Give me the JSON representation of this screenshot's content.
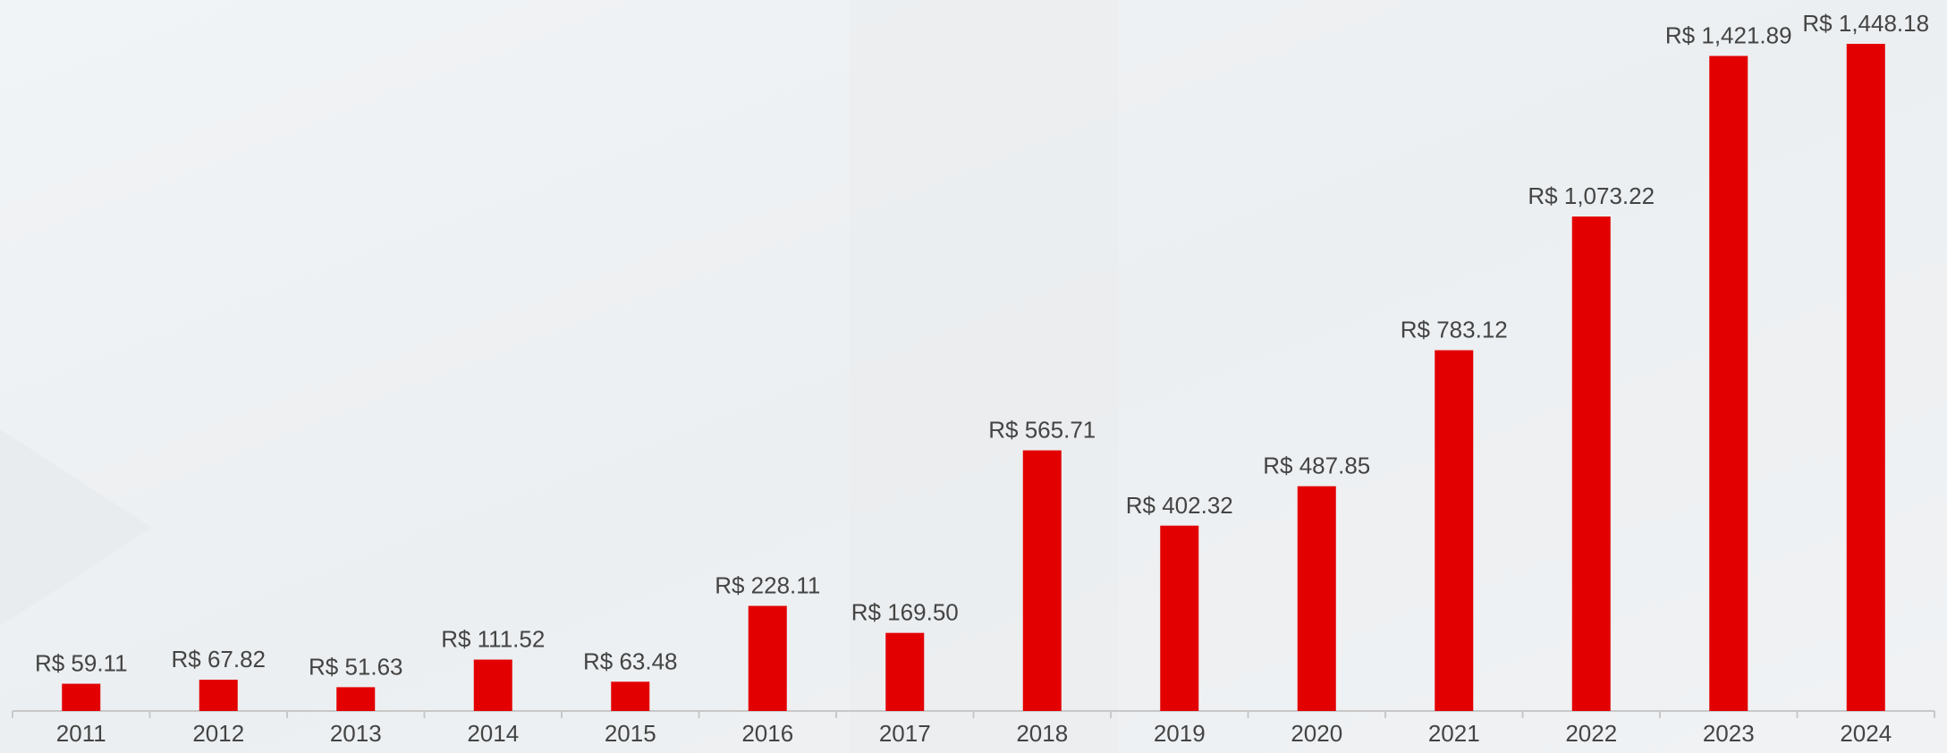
{
  "chart_data": {
    "type": "bar",
    "categories": [
      "2011",
      "2012",
      "2013",
      "2014",
      "2015",
      "2016",
      "2017",
      "2018",
      "2019",
      "2020",
      "2021",
      "2022",
      "2023",
      "2024"
    ],
    "values": [
      59.11,
      67.82,
      51.63,
      111.52,
      63.48,
      228.11,
      169.5,
      565.71,
      402.32,
      487.85,
      783.12,
      1073.22,
      1421.89,
      1448.18
    ],
    "value_labels": [
      "R$ 59.11",
      "R$ 67.82",
      "R$ 51.63",
      "R$ 111.52",
      "R$ 63.48",
      "R$ 228.11",
      "R$ 169.50",
      "R$ 565.71",
      "R$ 402.32",
      "R$ 487.85",
      "R$ 783.12",
      "R$ 1,073.22",
      "R$ 1,421.89",
      "R$ 1,448.18"
    ],
    "color": "#e30000"
  }
}
